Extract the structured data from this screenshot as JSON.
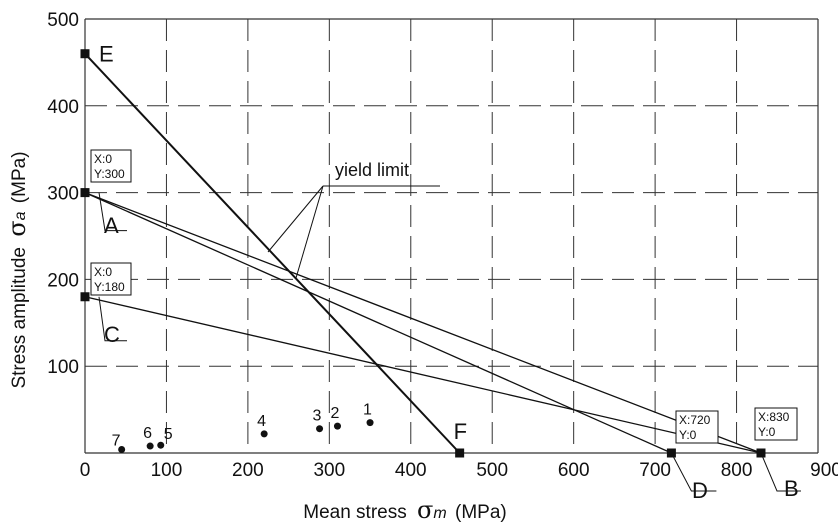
{
  "chart_data": {
    "type": "line",
    "xlabel": "Mean stress",
    "xlabel_symbol": "σ",
    "xlabel_sub": "m",
    "xlabel_unit": "(MPa)",
    "ylabel": "Stress amplitude",
    "ylabel_symbol": "σ",
    "ylabel_sub": "a",
    "ylabel_unit": "(MPa)",
    "xlim": [
      0,
      900
    ],
    "ylim": [
      0,
      500
    ],
    "x_ticks": [
      "0",
      "100",
      "200",
      "300",
      "400",
      "500",
      "600",
      "700",
      "800",
      "900"
    ],
    "y_ticks": [
      "100",
      "200",
      "300",
      "400",
      "500"
    ],
    "grid": true,
    "grid_style": "dashed",
    "lines": [
      {
        "from": "E",
        "to": "F"
      },
      {
        "from": "A",
        "to": "B"
      },
      {
        "from": "A",
        "to": "D"
      },
      {
        "from": "C",
        "to": "B"
      }
    ],
    "key_points": [
      {
        "label": "E",
        "x": 0,
        "y": 460
      },
      {
        "label": "A",
        "x": 0,
        "y": 300
      },
      {
        "label": "C",
        "x": 0,
        "y": 180
      },
      {
        "label": "F",
        "x": 460,
        "y": 0
      },
      {
        "label": "D",
        "x": 720,
        "y": 0
      },
      {
        "label": "B",
        "x": 830,
        "y": 0
      }
    ],
    "annotations": [
      {
        "x_text": "X:0",
        "y_text": "Y:300"
      },
      {
        "x_text": "X:0",
        "y_text": "Y:180"
      },
      {
        "x_text": "X:720",
        "y_text": "Y:0"
      },
      {
        "x_text": "X:830",
        "y_text": "Y:0"
      }
    ],
    "data_points": [
      {
        "label": "1",
        "x": 350,
        "y": 35
      },
      {
        "label": "2",
        "x": 310,
        "y": 31
      },
      {
        "label": "3",
        "x": 288,
        "y": 28
      },
      {
        "label": "4",
        "x": 220,
        "y": 22
      },
      {
        "label": "5",
        "x": 93,
        "y": 9
      },
      {
        "label": "6",
        "x": 80,
        "y": 8
      },
      {
        "label": "7",
        "x": 45,
        "y": 4
      }
    ],
    "yield_limit_label": "yield limit",
    "colors": {
      "line": "#111111",
      "grid": "#333333",
      "background": "#ffffff"
    }
  }
}
